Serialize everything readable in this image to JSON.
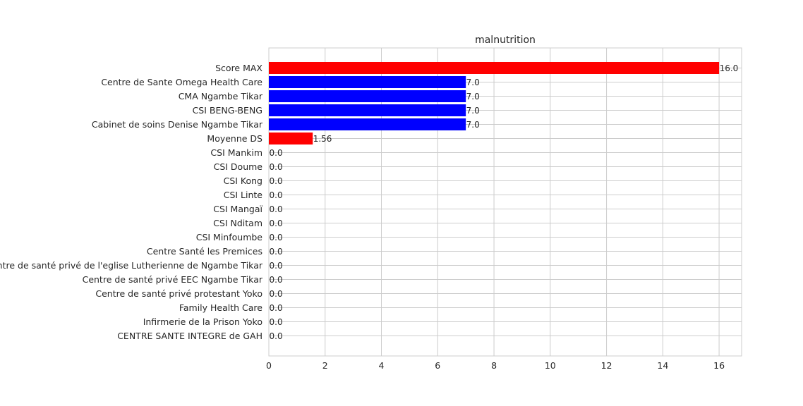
{
  "chart_data": {
    "type": "bar",
    "orientation": "horizontal",
    "title": "malnutrition",
    "xlabel": "",
    "ylabel": "",
    "xlim": [
      0,
      16.8
    ],
    "xticks": [
      0,
      2,
      4,
      6,
      8,
      10,
      12,
      14,
      16
    ],
    "grid": true,
    "categories": [
      "Score MAX",
      "Centre de Sante Omega Health  Care",
      "CMA Ngambe Tikar",
      "CSI BENG-BENG",
      "Cabinet de soins Denise Ngambe Tikar",
      "Moyenne DS",
      "CSI Mankim",
      "CSI Doume",
      "CSI Kong",
      "CSI Linte",
      "CSI Mangaï",
      "CSI Nditam",
      "CSI Minfoumbe",
      "Centre Santé les Premices",
      "Centre de santé privé  de l'eglise Lutherienne de Ngambe Tikar",
      "Centre de santé privé EEC Ngambe Tikar",
      "Centre de santé privé protestant Yoko",
      "Family Health Care",
      "Infirmerie de la Prison Yoko",
      "CENTRE SANTE INTEGRE  de GAH"
    ],
    "values": [
      16.0,
      7.0,
      7.0,
      7.0,
      7.0,
      1.56,
      0.0,
      0.0,
      0.0,
      0.0,
      0.0,
      0.0,
      0.0,
      0.0,
      0.0,
      0.0,
      0.0,
      0.0,
      0.0,
      0.0
    ],
    "value_labels": [
      "16.0",
      "7.0",
      "7.0",
      "7.0",
      "7.0",
      "1.56",
      "0.0",
      "0.0",
      "0.0",
      "0.0",
      "0.0",
      "0.0",
      "0.0",
      "0.0",
      "0.0",
      "0.0",
      "0.0",
      "0.0",
      "0.0",
      "0.0"
    ],
    "colors": [
      "#ff0000",
      "#0000ff",
      "#0000ff",
      "#0000ff",
      "#0000ff",
      "#ff0000",
      "#0000ff",
      "#0000ff",
      "#0000ff",
      "#0000ff",
      "#0000ff",
      "#0000ff",
      "#0000ff",
      "#0000ff",
      "#0000ff",
      "#0000ff",
      "#0000ff",
      "#0000ff",
      "#0000ff",
      "#0000ff"
    ]
  }
}
